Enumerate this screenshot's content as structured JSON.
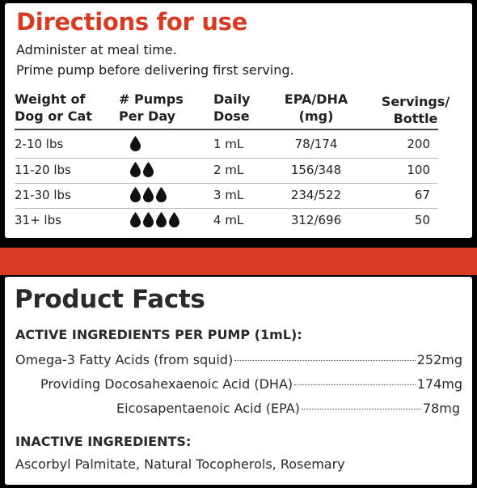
{
  "directions": {
    "title": "Directions for use",
    "line1": "Administer at meal time.",
    "line2": "Prime pump before delivering first serving.",
    "headers": {
      "weight": [
        "Weight of",
        "Dog or Cat"
      ],
      "pumps": [
        "# Pumps",
        "Per Day"
      ],
      "dose": [
        "Daily",
        "Dose"
      ],
      "epa": [
        "EPA/DHA",
        "(mg)"
      ],
      "servings": [
        "Servings/",
        "Bottle"
      ]
    },
    "rows": [
      {
        "weight": "2-10 lbs",
        "pumps": 1,
        "dose": "1 mL",
        "epa": "78/174",
        "servings": "200"
      },
      {
        "weight": "11-20 lbs",
        "pumps": 2,
        "dose": "2 mL",
        "epa": "156/348",
        "servings": "100"
      },
      {
        "weight": "21-30 lbs",
        "pumps": 3,
        "dose": "3 mL",
        "epa": "234/522",
        "servings": "67"
      },
      {
        "weight": "31+ lbs",
        "pumps": 4,
        "dose": "4 mL",
        "epa": "312/696",
        "servings": "50"
      }
    ],
    "drop_icon": "drop-icon",
    "drop_color": "#111111"
  },
  "facts": {
    "title": "Product Facts",
    "active_heading": "ACTIVE INGREDIENTS PER PUMP (1mL):",
    "ingredients": [
      {
        "name": "Omega-3 Fatty Acids (from squid)",
        "amount": "252mg"
      },
      {
        "name": "Providing Docosahexaenoic Acid (DHA)",
        "amount": "174mg"
      },
      {
        "name": "Eicosapentaenoic Acid (EPA)",
        "amount": "78mg"
      }
    ],
    "inactive_heading": "INACTIVE INGREDIENTS:",
    "inactive_text": "Ascorbyl Palmitate, Natural Tocopherols, Rosemary"
  },
  "colors": {
    "accent": "#d93a22",
    "background": "#000000",
    "panel": "#ffffff"
  }
}
